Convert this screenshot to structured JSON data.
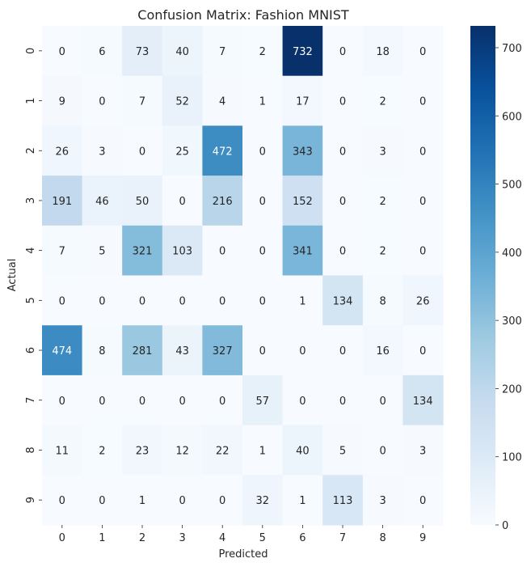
{
  "chart_data": {
    "type": "heatmap",
    "title": "Confusion Matrix: Fashion MNIST",
    "xlabel": "Predicted",
    "ylabel": "Actual",
    "x_categories": [
      "0",
      "1",
      "2",
      "3",
      "4",
      "5",
      "6",
      "7",
      "8",
      "9"
    ],
    "y_categories": [
      "0",
      "1",
      "2",
      "3",
      "4",
      "5",
      "6",
      "7",
      "8",
      "9"
    ],
    "matrix": [
      [
        0,
        6,
        73,
        40,
        7,
        2,
        732,
        0,
        18,
        0
      ],
      [
        9,
        0,
        7,
        52,
        4,
        1,
        17,
        0,
        2,
        0
      ],
      [
        26,
        3,
        0,
        25,
        472,
        0,
        343,
        0,
        3,
        0
      ],
      [
        191,
        46,
        50,
        0,
        216,
        0,
        152,
        0,
        2,
        0
      ],
      [
        7,
        5,
        321,
        103,
        0,
        0,
        341,
        0,
        2,
        0
      ],
      [
        0,
        0,
        0,
        0,
        0,
        0,
        1,
        134,
        8,
        26
      ],
      [
        474,
        8,
        281,
        43,
        327,
        0,
        0,
        0,
        16,
        0
      ],
      [
        0,
        0,
        0,
        0,
        0,
        57,
        0,
        0,
        0,
        134
      ],
      [
        11,
        2,
        23,
        12,
        22,
        1,
        40,
        5,
        0,
        3
      ],
      [
        0,
        0,
        1,
        0,
        0,
        32,
        1,
        113,
        3,
        0
      ]
    ],
    "colorbar": {
      "colormap": "Blues",
      "vmin": 0,
      "vmax": 732,
      "ticks": [
        0,
        100,
        200,
        300,
        400,
        500,
        600,
        700
      ]
    },
    "annotations": true,
    "grid": false
  }
}
